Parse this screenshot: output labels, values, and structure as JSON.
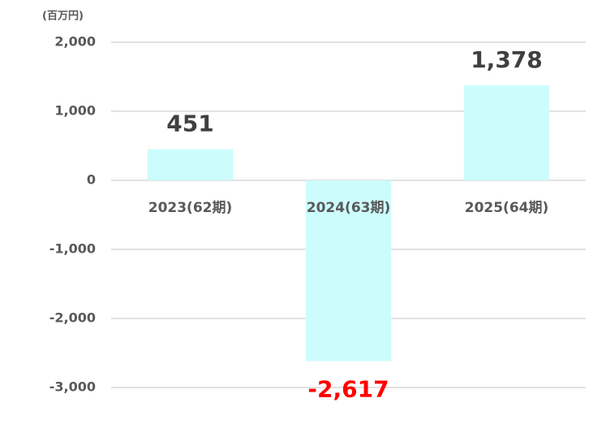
{
  "chart_data": {
    "type": "bar",
    "unit": "(百万円)",
    "categories": [
      "2023(62期)",
      "2024(63期)",
      "2025(64期)"
    ],
    "values": [
      451,
      -2617,
      1378
    ],
    "value_labels": [
      "451",
      "-2,617",
      "1,378"
    ],
    "color": "#ccfcfc",
    "label_color": "#404040",
    "negative_label_color": "#ff0000",
    "ylim": [
      -3000,
      2000
    ],
    "yticks": [
      {
        "value": -3000,
        "label": "-3,000"
      },
      {
        "value": -2000,
        "label": "-2,000"
      },
      {
        "value": -1000,
        "label": "-1,000"
      },
      0,
      {
        "value": 1000,
        "label": "1,000"
      },
      {
        "value": 2000,
        "label": "2,000"
      }
    ],
    "grid": true
  }
}
